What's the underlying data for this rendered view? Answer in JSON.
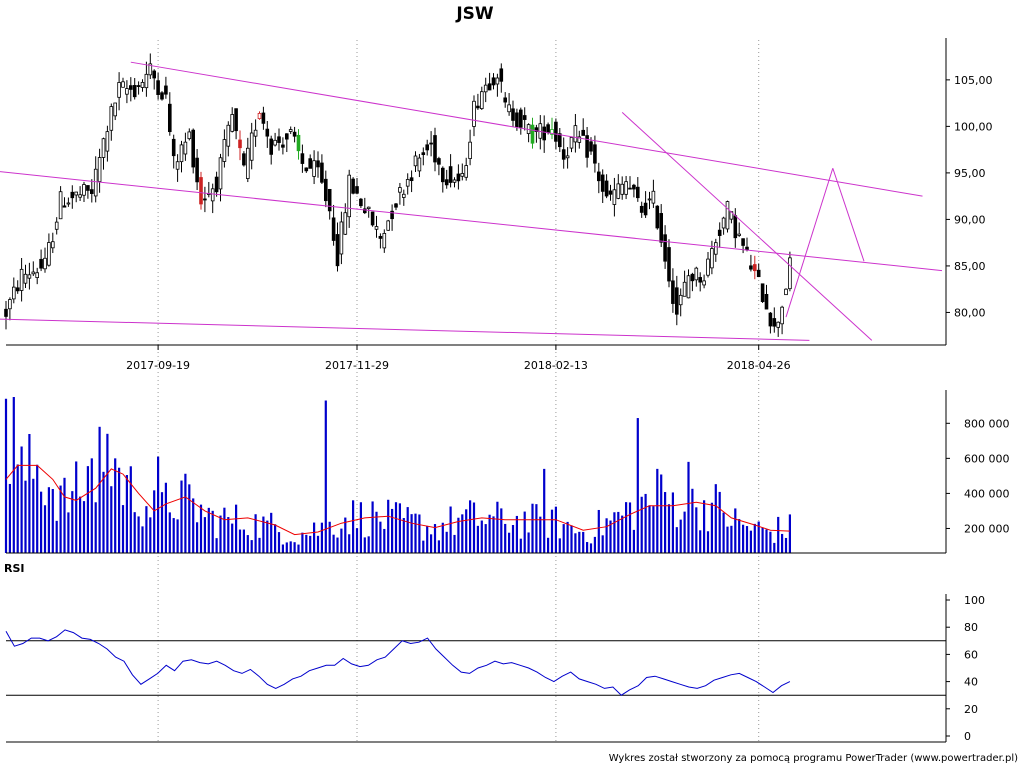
{
  "chart_data": [
    {
      "type": "candlestick",
      "title": "JSW",
      "x_ticks": [
        "2017-09-19",
        "2017-11-29",
        "2018-02-13",
        "2018-04-26"
      ],
      "y_ticks": [
        "80,00",
        "85,00",
        "90,00",
        "95,00",
        "100,00",
        "105,00"
      ],
      "ylim": [
        76.5,
        109.5
      ],
      "grid": "dotted vertical lines at date ticks",
      "anchors": [
        [
          0,
          80
        ],
        [
          4,
          84
        ],
        [
          10,
          85
        ],
        [
          14,
          92
        ],
        [
          22,
          93
        ],
        [
          26,
          100
        ],
        [
          29,
          104
        ],
        [
          33,
          104
        ],
        [
          37,
          106
        ],
        [
          41,
          103
        ],
        [
          43,
          96
        ],
        [
          47,
          99
        ],
        [
          50,
          92
        ],
        [
          54,
          94
        ],
        [
          58,
          101
        ],
        [
          61,
          95
        ],
        [
          65,
          102
        ],
        [
          68,
          98
        ],
        [
          73,
          99
        ],
        [
          76,
          96
        ],
        [
          80,
          95
        ],
        [
          83,
          91
        ],
        [
          85,
          86
        ],
        [
          88,
          94
        ],
        [
          91,
          92
        ],
        [
          96,
          88
        ],
        [
          100,
          92
        ],
        [
          105,
          96
        ],
        [
          109,
          98
        ],
        [
          112,
          95
        ],
        [
          117,
          94
        ],
        [
          120,
          102
        ],
        [
          122,
          104
        ],
        [
          126,
          106
        ],
        [
          128,
          102
        ],
        [
          131,
          101
        ],
        [
          135,
          99
        ],
        [
          140,
          100
        ],
        [
          143,
          97
        ],
        [
          146,
          99
        ],
        [
          150,
          97
        ],
        [
          154,
          92
        ],
        [
          159,
          94
        ],
        [
          163,
          91
        ],
        [
          166,
          92
        ],
        [
          169,
          86
        ],
        [
          172,
          80
        ],
        [
          175,
          84
        ],
        [
          179,
          84
        ],
        [
          182,
          88
        ],
        [
          185,
          91
        ],
        [
          188,
          88
        ],
        [
          191,
          85
        ],
        [
          195,
          81
        ],
        [
          197,
          78
        ],
        [
          199,
          81
        ],
        [
          201,
          85
        ]
      ],
      "colored_candles": [
        [
          50,
          "#cc2222"
        ],
        [
          60,
          "#cc2222"
        ],
        [
          65,
          "#cc2222"
        ],
        [
          75,
          "#22aa22"
        ],
        [
          135,
          "#22aa22"
        ],
        [
          140,
          "#22aa22"
        ],
        [
          192,
          "#cc2222"
        ]
      ],
      "trendlines": [
        {
          "from": [
            -3,
            95.2
          ],
          "to": [
            240,
            84.5
          ]
        },
        {
          "from": [
            32,
            106.9
          ],
          "to": [
            235,
            92.5
          ]
        },
        {
          "from": [
            -3,
            79.3
          ],
          "to": [
            206,
            77.0
          ]
        },
        {
          "from": [
            158,
            101.5
          ],
          "to": [
            222,
            77.0
          ]
        },
        {
          "from": [
            200,
            79.5
          ],
          "to": [
            212,
            95.5
          ]
        },
        {
          "from": [
            212,
            95.5
          ],
          "to": [
            220,
            85.5
          ]
        }
      ]
    },
    {
      "type": "bar",
      "series": "volume with moving average",
      "y_ticks": [
        "200 000",
        "400 000",
        "600 000",
        "800 000"
      ],
      "ylim": [
        60000,
        990000
      ],
      "anchors": [
        [
          0,
          480000
        ],
        [
          8,
          540000
        ],
        [
          15,
          360000
        ],
        [
          22,
          470000
        ],
        [
          28,
          500000
        ],
        [
          32,
          420000
        ],
        [
          38,
          300000
        ],
        [
          45,
          380000
        ],
        [
          52,
          260000
        ],
        [
          60,
          240000
        ],
        [
          68,
          210000
        ],
        [
          75,
          165000
        ],
        [
          82,
          210000
        ],
        [
          88,
          270000
        ],
        [
          95,
          260000
        ],
        [
          102,
          240000
        ],
        [
          110,
          205000
        ],
        [
          118,
          260000
        ],
        [
          125,
          250000
        ],
        [
          132,
          240000
        ],
        [
          140,
          240000
        ],
        [
          148,
          180000
        ],
        [
          155,
          240000
        ],
        [
          162,
          330000
        ],
        [
          168,
          370000
        ],
        [
          175,
          330000
        ],
        [
          182,
          330000
        ],
        [
          188,
          220000
        ],
        [
          195,
          185000
        ],
        [
          201,
          200000
        ]
      ],
      "ma_anchors": [
        [
          0,
          480000
        ],
        [
          3,
          560000
        ],
        [
          8,
          560000
        ],
        [
          12,
          480000
        ],
        [
          15,
          380000
        ],
        [
          18,
          360000
        ],
        [
          23,
          430000
        ],
        [
          27,
          540000
        ],
        [
          30,
          510000
        ],
        [
          34,
          400000
        ],
        [
          38,
          300000
        ],
        [
          41,
          340000
        ],
        [
          46,
          380000
        ],
        [
          51,
          300000
        ],
        [
          56,
          250000
        ],
        [
          62,
          260000
        ],
        [
          69,
          220000
        ],
        [
          74,
          165000
        ],
        [
          80,
          180000
        ],
        [
          86,
          230000
        ],
        [
          92,
          260000
        ],
        [
          98,
          270000
        ],
        [
          104,
          230000
        ],
        [
          110,
          205000
        ],
        [
          116,
          240000
        ],
        [
          122,
          260000
        ],
        [
          128,
          250000
        ],
        [
          135,
          250000
        ],
        [
          141,
          250000
        ],
        [
          148,
          190000
        ],
        [
          154,
          210000
        ],
        [
          160,
          280000
        ],
        [
          165,
          330000
        ],
        [
          171,
          330000
        ],
        [
          177,
          350000
        ],
        [
          182,
          330000
        ],
        [
          186,
          260000
        ],
        [
          192,
          220000
        ],
        [
          196,
          190000
        ],
        [
          201,
          185000
        ]
      ],
      "tall_bars": [
        [
          0,
          940000
        ],
        [
          2,
          950000
        ],
        [
          22,
          600000
        ],
        [
          24,
          780000
        ],
        [
          26,
          740000
        ],
        [
          28,
          600000
        ],
        [
          39,
          610000
        ],
        [
          82,
          930000
        ],
        [
          138,
          540000
        ],
        [
          162,
          830000
        ],
        [
          167,
          540000
        ],
        [
          175,
          580000
        ]
      ]
    },
    {
      "type": "line",
      "title": "RSI",
      "y_ticks": [
        "0",
        "20",
        "40",
        "60",
        "80",
        "100"
      ],
      "ylim": [
        0,
        100
      ],
      "reference_lines": [
        70,
        30
      ],
      "values": [
        77,
        66,
        68,
        72,
        72,
        70,
        73,
        78,
        76,
        72,
        71,
        68,
        64,
        58,
        55,
        45,
        38,
        42,
        46,
        52,
        48,
        55,
        56,
        54,
        53,
        55,
        52,
        48,
        46,
        49,
        44,
        38,
        35,
        38,
        42,
        44,
        48,
        50,
        52,
        52,
        57,
        53,
        51,
        52,
        56,
        58,
        64,
        70,
        68,
        69,
        72,
        64,
        58,
        52,
        47,
        46,
        50,
        52,
        55,
        53,
        54,
        52,
        50,
        47,
        43,
        40,
        44,
        47,
        42,
        40,
        38,
        35,
        36,
        30,
        34,
        37,
        43,
        44,
        42,
        40,
        38,
        36,
        35,
        37,
        41,
        43,
        45,
        46,
        43,
        40,
        36,
        32,
        37,
        40
      ]
    }
  ],
  "footer": "Wykres został stworzony za pomocą programu PowerTrader (www.powertrader.pl)"
}
